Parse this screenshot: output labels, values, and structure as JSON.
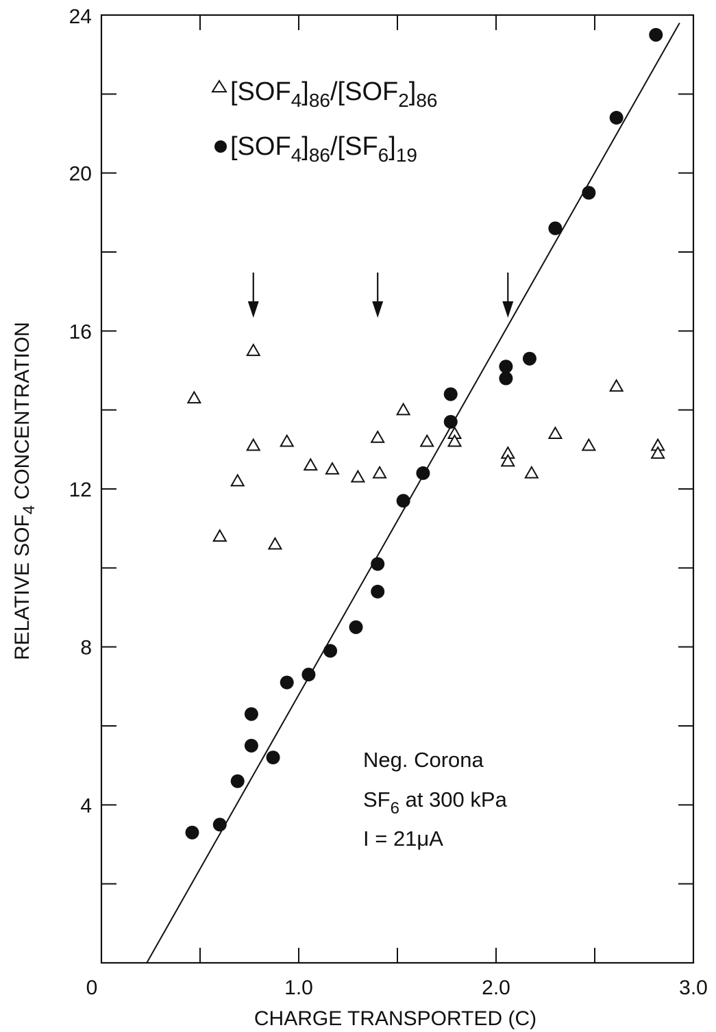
{
  "chart_data": {
    "type": "scatter",
    "title": "",
    "xlabel": "CHARGE TRANSPORTED (C)",
    "ylabel": {
      "main": "RELATIVE SOF",
      "sub": "4",
      "tail": " CONCENTRATION"
    },
    "xlim": [
      0,
      3.0
    ],
    "ylim": [
      0,
      24
    ],
    "x_ticks": [
      {
        "value": 0,
        "label": "0"
      },
      {
        "value": 1.0,
        "label": "1.0"
      },
      {
        "value": 2.0,
        "label": "2.0"
      },
      {
        "value": 3.0,
        "label": "3.0"
      }
    ],
    "y_ticks": [
      {
        "value": 4,
        "label": "4"
      },
      {
        "value": 8,
        "label": "8"
      },
      {
        "value": 12,
        "label": "12"
      },
      {
        "value": 16,
        "label": "16"
      },
      {
        "value": 20,
        "label": "20"
      },
      {
        "value": 24,
        "label": "24"
      }
    ],
    "x_minor_ticks": [
      0.5,
      1.5,
      2.5
    ],
    "y_minor_ticks": [
      2,
      6,
      10,
      14,
      18,
      22
    ],
    "series": [
      {
        "name": "[SOF4]86/[SOF2]86",
        "marker": "open-triangle",
        "points": [
          [
            0.47,
            14.3
          ],
          [
            0.6,
            10.8
          ],
          [
            0.69,
            12.2
          ],
          [
            0.77,
            15.5
          ],
          [
            0.77,
            13.1
          ],
          [
            0.88,
            10.6
          ],
          [
            0.94,
            13.2
          ],
          [
            1.06,
            12.6
          ],
          [
            1.17,
            12.5
          ],
          [
            1.3,
            12.3
          ],
          [
            1.4,
            13.3
          ],
          [
            1.41,
            12.4
          ],
          [
            1.53,
            14.0
          ],
          [
            1.65,
            13.2
          ],
          [
            1.79,
            13.4
          ],
          [
            1.79,
            13.2
          ],
          [
            2.06,
            12.9
          ],
          [
            2.06,
            12.7
          ],
          [
            2.18,
            12.4
          ],
          [
            2.3,
            13.4
          ],
          [
            2.47,
            13.1
          ],
          [
            2.61,
            14.6
          ],
          [
            2.82,
            13.1
          ],
          [
            2.82,
            12.9
          ]
        ]
      },
      {
        "name": "[SOF4]86/[SF6]19",
        "marker": "filled-circle",
        "points": [
          [
            0.46,
            3.3
          ],
          [
            0.6,
            3.5
          ],
          [
            0.69,
            4.6
          ],
          [
            0.76,
            5.5
          ],
          [
            0.76,
            6.3
          ],
          [
            0.87,
            5.2
          ],
          [
            0.94,
            7.1
          ],
          [
            1.05,
            7.3
          ],
          [
            1.16,
            7.9
          ],
          [
            1.29,
            8.5
          ],
          [
            1.4,
            9.4
          ],
          [
            1.4,
            10.1
          ],
          [
            1.53,
            11.7
          ],
          [
            1.63,
            12.4
          ],
          [
            1.77,
            13.7
          ],
          [
            1.77,
            14.4
          ],
          [
            2.05,
            14.8
          ],
          [
            2.05,
            15.1
          ],
          [
            2.17,
            15.3
          ],
          [
            2.3,
            18.6
          ],
          [
            2.47,
            19.5
          ],
          [
            2.61,
            21.4
          ],
          [
            2.81,
            23.5
          ]
        ]
      }
    ],
    "fit_line": [
      [
        0.23,
        0
      ],
      [
        2.93,
        23.8
      ]
    ],
    "arrows_x": [
      0.77,
      1.4,
      2.06
    ],
    "legend": {
      "position": "top-left",
      "entries": [
        {
          "marker": "open-triangle",
          "parts": [
            "[SOF",
            "4",
            "]",
            "86",
            "/[SOF",
            "2",
            "]",
            "86"
          ]
        },
        {
          "marker": "filled-circle",
          "parts": [
            "[SOF",
            "4",
            "]",
            "86",
            "/[SF",
            "6",
            "]",
            "19"
          ]
        }
      ]
    },
    "annotation": {
      "line1": "Neg. Corona",
      "line2_main": "SF",
      "line2_sub": "6",
      "line2_tail": " at 300 kPa",
      "line3": "I = 21μA"
    },
    "grid": false
  }
}
